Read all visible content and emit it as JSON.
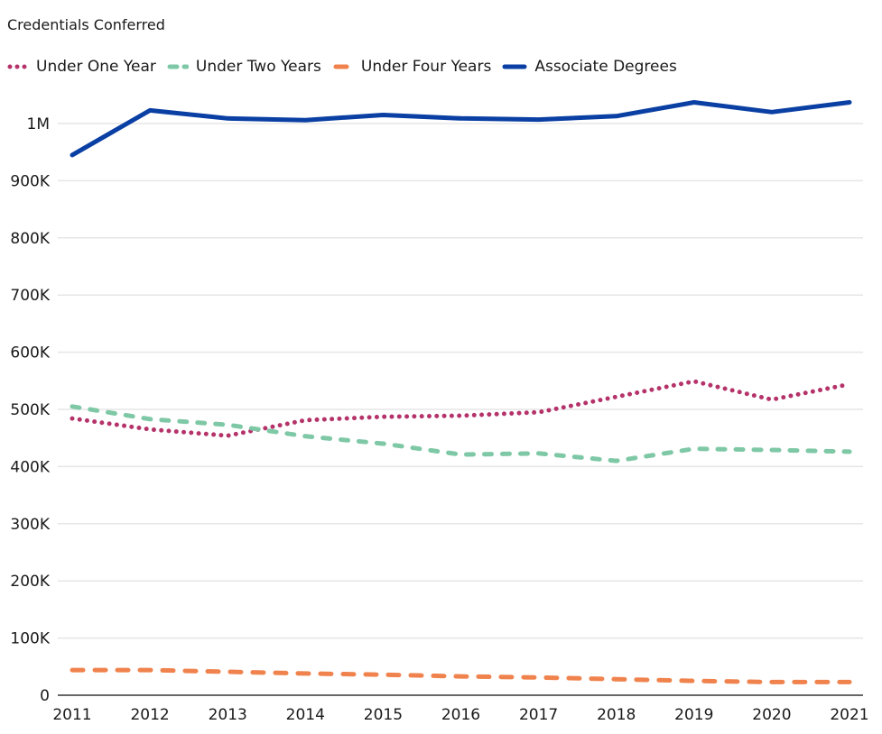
{
  "chart_data": {
    "type": "line",
    "title": "Credentials Conferred",
    "xlabel": "",
    "ylabel": "",
    "x": [
      "2011",
      "2012",
      "2013",
      "2014",
      "2015",
      "2016",
      "2017",
      "2018",
      "2019",
      "2020",
      "2021"
    ],
    "ylim": [
      0,
      1050000
    ],
    "yticks": [
      0,
      100000,
      200000,
      300000,
      400000,
      500000,
      600000,
      700000,
      800000,
      900000,
      1000000
    ],
    "ytick_labels": [
      "0",
      "100K",
      "200K",
      "300K",
      "400K",
      "500K",
      "600K",
      "700K",
      "800K",
      "900K",
      "1M"
    ],
    "grid": true,
    "legend_position": "top-left",
    "series": [
      {
        "name": "Under One Year",
        "color": "#b5336a",
        "style": "dotted",
        "values": [
          484000,
          465000,
          454000,
          481000,
          487000,
          489000,
          495000,
          522000,
          549000,
          517000,
          544000
        ]
      },
      {
        "name": "Under Two Years",
        "color": "#7ec8a6",
        "style": "dashed",
        "values": [
          505000,
          483000,
          473000,
          453000,
          440000,
          421000,
          423000,
          410000,
          431000,
          429000,
          426000
        ]
      },
      {
        "name": "Under Four Years",
        "color": "#f0834d",
        "style": "long-dashed",
        "values": [
          44000,
          44000,
          41000,
          38000,
          36000,
          33000,
          31000,
          28000,
          25000,
          23000,
          23000
        ]
      },
      {
        "name": "Associate Degrees",
        "color": "#0a3fa3",
        "style": "solid",
        "values": [
          945000,
          1023000,
          1009000,
          1006000,
          1015000,
          1009000,
          1007000,
          1013000,
          1037000,
          1020000,
          1037000
        ]
      }
    ]
  }
}
